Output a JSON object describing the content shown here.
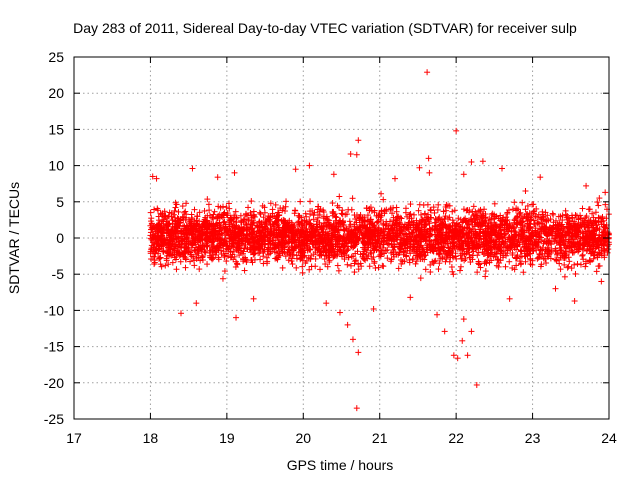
{
  "chart_data": {
    "type": "scatter",
    "title": "Day 283 of 2011, Sidereal Day-to-day VTEC variation (SDTVAR) for receiver sulp",
    "xlabel": "GPS time / hours",
    "ylabel": "SDTVAR / TECUs",
    "xlim": [
      17,
      24
    ],
    "ylim": [
      -25,
      25
    ],
    "xticks": [
      17,
      18,
      19,
      20,
      21,
      22,
      23,
      24
    ],
    "yticks": [
      -25,
      -20,
      -15,
      -10,
      -5,
      0,
      5,
      10,
      15,
      20,
      25
    ],
    "grid": true,
    "marker": "+",
    "color": "#ff0000",
    "series": [
      {
        "name": "SDTVAR",
        "points": [
          [
            21.62,
            22.9
          ],
          [
            22.0,
            14.8
          ],
          [
            20.72,
            13.5
          ],
          [
            20.62,
            11.6
          ],
          [
            20.7,
            11.5
          ],
          [
            21.64,
            11.0
          ],
          [
            22.2,
            10.5
          ],
          [
            22.35,
            10.6
          ],
          [
            20.08,
            10.0
          ],
          [
            21.52,
            9.7
          ],
          [
            21.65,
            9.0
          ],
          [
            18.03,
            8.5
          ],
          [
            18.08,
            8.2
          ],
          [
            18.55,
            9.6
          ],
          [
            18.88,
            8.4
          ],
          [
            19.1,
            9.0
          ],
          [
            19.9,
            9.5
          ],
          [
            20.4,
            8.8
          ],
          [
            21.2,
            8.2
          ],
          [
            22.1,
            8.8
          ],
          [
            22.6,
            9.6
          ],
          [
            23.1,
            8.4
          ],
          [
            23.7,
            7.2
          ],
          [
            23.95,
            6.3
          ],
          [
            20.7,
            -23.5
          ],
          [
            22.27,
            -20.3
          ],
          [
            22.02,
            -16.6
          ],
          [
            21.97,
            -16.2
          ],
          [
            22.15,
            -16.2
          ],
          [
            20.72,
            -15.8
          ],
          [
            20.65,
            -14.0
          ],
          [
            22.08,
            -14.2
          ],
          [
            22.2,
            -12.9
          ],
          [
            20.58,
            -12.0
          ],
          [
            19.12,
            -11.0
          ],
          [
            21.85,
            -12.9
          ],
          [
            22.1,
            -11.2
          ],
          [
            21.75,
            -10.6
          ],
          [
            20.48,
            -10.3
          ],
          [
            20.92,
            -9.8
          ],
          [
            18.4,
            -10.4
          ],
          [
            18.6,
            -9.0
          ],
          [
            19.35,
            -8.4
          ],
          [
            20.3,
            -9.0
          ],
          [
            21.4,
            -8.2
          ],
          [
            22.7,
            -8.4
          ],
          [
            23.55,
            -8.7
          ],
          [
            23.3,
            -7.0
          ],
          [
            23.9,
            -6.0
          ]
        ]
      }
    ]
  }
}
